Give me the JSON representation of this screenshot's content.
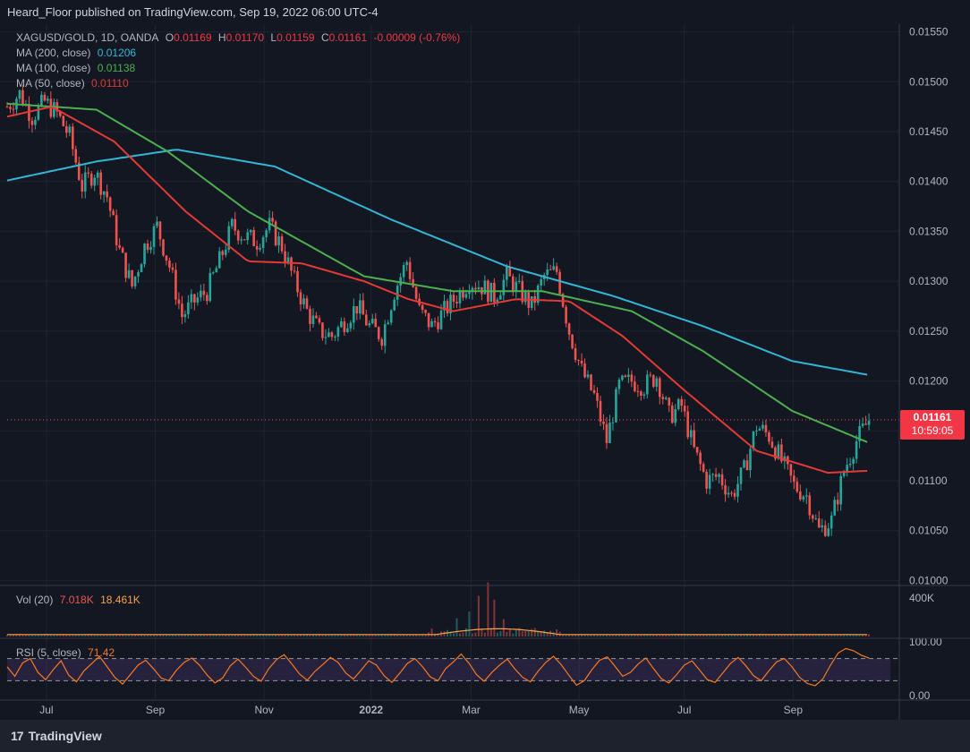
{
  "header": {
    "published_text": "Heard_Floor published on TradingView.com, Sep 19, 2022 06:00 UTC-4"
  },
  "legend": {
    "symbol": "XAGUSD/GOLD, 1D, OANDA",
    "open_label": "O",
    "open": "0.01169",
    "high_label": "H",
    "high": "0.01170",
    "low_label": "L",
    "low": "0.01159",
    "close_label": "C",
    "close": "0.01161",
    "change": "-0.00009 (-0.76%)",
    "ma200_label": "MA (200, close)",
    "ma200_value": "0.01206",
    "ma100_label": "MA (100, close)",
    "ma100_value": "0.01138",
    "ma50_label": "MA (50, close)",
    "ma50_value": "0.01110",
    "vol_label": "Vol (20)",
    "vol_value1": "7.018K",
    "vol_value2": "18.461K",
    "rsi_label": "RSI (5, close)",
    "rsi_value": "71.42"
  },
  "price_tag": {
    "price": "0.01161",
    "countdown": "10:59:05"
  },
  "footer": {
    "brand": "TradingView",
    "logo_glyph": "17"
  },
  "colors": {
    "background": "#131722",
    "up": "#26a69a",
    "down": "#ef5350",
    "ma200": "#33b6d6",
    "ma100": "#4caf50",
    "ma50": "#e53935",
    "rsi": "#f7781f",
    "volume_ma": "#f7a24a"
  },
  "chart_data": {
    "type": "candlestick",
    "symbol": "XAGUSD/GOLD",
    "timeframe": "1D",
    "y_axis": {
      "ticks": [
        "0.01550",
        "0.01500",
        "0.01450",
        "0.01400",
        "0.01350",
        "0.01300",
        "0.01250",
        "0.01200",
        "0.01150",
        "0.01100",
        "0.01050",
        "0.01000"
      ],
      "range": [
        0.00995,
        0.01555
      ]
    },
    "x_axis": {
      "ticks": [
        "Jul",
        "Sep",
        "Nov",
        "2022",
        "Mar",
        "May",
        "Jul",
        "Sep"
      ],
      "range_days": [
        0,
        480
      ]
    },
    "tick_days": [
      44,
      166,
      288,
      408,
      520,
      641,
      759,
      881
    ],
    "close_path": [
      [
        0,
        0.01475
      ],
      [
        14,
        0.01488
      ],
      [
        28,
        0.01465
      ],
      [
        42,
        0.0148
      ],
      [
        56,
        0.01468
      ],
      [
        70,
        0.01445
      ],
      [
        84,
        0.01395
      ],
      [
        98,
        0.0141
      ],
      [
        112,
        0.01385
      ],
      [
        126,
        0.0133
      ],
      [
        140,
        0.01295
      ],
      [
        154,
        0.01335
      ],
      [
        168,
        0.01355
      ],
      [
        182,
        0.01315
      ],
      [
        196,
        0.01265
      ],
      [
        210,
        0.0128
      ],
      [
        224,
        0.0129
      ],
      [
        238,
        0.0132
      ],
      [
        252,
        0.01355
      ],
      [
        266,
        0.01345
      ],
      [
        280,
        0.0134
      ],
      [
        294,
        0.01355
      ],
      [
        308,
        0.01335
      ],
      [
        322,
        0.013
      ],
      [
        336,
        0.0127
      ],
      [
        350,
        0.0125
      ],
      [
        364,
        0.01245
      ],
      [
        378,
        0.0126
      ],
      [
        392,
        0.01275
      ],
      [
        406,
        0.01255
      ],
      [
        420,
        0.01245
      ],
      [
        434,
        0.0129
      ],
      [
        448,
        0.0132
      ],
      [
        462,
        0.0127
      ],
      [
        476,
        0.01255
      ],
      [
        490,
        0.0127
      ],
      [
        504,
        0.01285
      ],
      [
        518,
        0.013
      ],
      [
        532,
        0.01295
      ],
      [
        546,
        0.01285
      ],
      [
        560,
        0.01305
      ],
      [
        574,
        0.0129
      ],
      [
        588,
        0.01275
      ],
      [
        602,
        0.01305
      ],
      [
        616,
        0.0131
      ],
      [
        630,
        0.0125
      ],
      [
        644,
        0.0121
      ],
      [
        658,
        0.01185
      ],
      [
        672,
        0.0114
      ],
      [
        686,
        0.01195
      ],
      [
        700,
        0.012
      ],
      [
        714,
        0.01195
      ],
      [
        728,
        0.01205
      ],
      [
        742,
        0.01165
      ],
      [
        756,
        0.01175
      ],
      [
        770,
        0.0113
      ],
      [
        784,
        0.011
      ],
      [
        798,
        0.01105
      ],
      [
        812,
        0.01085
      ],
      [
        826,
        0.0111
      ],
      [
        840,
        0.01155
      ],
      [
        854,
        0.01145
      ],
      [
        868,
        0.0112
      ],
      [
        882,
        0.01095
      ],
      [
        896,
        0.01085
      ],
      [
        910,
        0.0105
      ],
      [
        924,
        0.0106
      ],
      [
        938,
        0.0111
      ],
      [
        952,
        0.0114
      ],
      [
        966,
        0.01161
      ]
    ],
    "ma200": [
      [
        0,
        0.01401
      ],
      [
        100,
        0.0142
      ],
      [
        190,
        0.01432
      ],
      [
        300,
        0.01415
      ],
      [
        430,
        0.01362
      ],
      [
        560,
        0.01315
      ],
      [
        680,
        0.01285
      ],
      [
        780,
        0.01255
      ],
      [
        880,
        0.0122
      ],
      [
        966,
        0.01206
      ]
    ],
    "ma100": [
      [
        0,
        0.01478
      ],
      [
        100,
        0.01472
      ],
      [
        180,
        0.0143
      ],
      [
        270,
        0.0137
      ],
      [
        400,
        0.01305
      ],
      [
        500,
        0.0129
      ],
      [
        600,
        0.0129
      ],
      [
        700,
        0.0127
      ],
      [
        780,
        0.0123
      ],
      [
        880,
        0.0117
      ],
      [
        966,
        0.01138
      ]
    ],
    "ma50": [
      [
        0,
        0.01465
      ],
      [
        50,
        0.01475
      ],
      [
        120,
        0.0144
      ],
      [
        200,
        0.0137
      ],
      [
        270,
        0.0132
      ],
      [
        330,
        0.01318
      ],
      [
        400,
        0.013
      ],
      [
        450,
        0.01282
      ],
      [
        500,
        0.0127
      ],
      [
        570,
        0.01282
      ],
      [
        630,
        0.0128
      ],
      [
        690,
        0.01245
      ],
      [
        760,
        0.0119
      ],
      [
        840,
        0.0113
      ],
      [
        920,
        0.01108
      ],
      [
        966,
        0.0111
      ]
    ],
    "last_price": 0.01161,
    "volume": {
      "axis_ticks": [
        "400K"
      ],
      "range": [
        0,
        500000
      ],
      "spikes": [
        [
          505,
          190000
        ],
        [
          518,
          260000
        ],
        [
          530,
          420000
        ],
        [
          540,
          560000
        ],
        [
          547,
          380000
        ],
        [
          555,
          180000
        ]
      ]
    },
    "rsi": {
      "axis_ticks": [
        "100.00",
        "0.00"
      ],
      "range": [
        0,
        100
      ],
      "bands": [
        30,
        70
      ],
      "values": [
        55,
        38,
        62,
        70,
        45,
        32,
        50,
        66,
        40,
        28,
        48,
        61,
        74,
        55,
        36,
        24,
        41,
        58,
        67,
        52,
        35,
        30,
        49,
        63,
        71,
        58,
        40,
        26,
        35,
        57,
        69,
        54,
        38,
        29,
        52,
        68,
        77,
        60,
        42,
        31,
        47,
        59,
        72,
        63,
        44,
        33,
        49,
        66,
        58,
        39,
        27,
        43,
        61,
        70,
        55,
        37,
        30,
        52,
        64,
        78,
        62,
        41,
        29,
        45,
        58,
        69,
        51,
        36,
        28,
        47,
        63,
        74,
        59,
        40,
        22,
        30,
        50,
        67,
        73,
        56,
        38,
        45,
        60,
        71,
        52,
        34,
        26,
        41,
        58,
        66,
        49,
        32,
        27,
        44,
        61,
        72,
        57,
        39,
        30,
        48,
        64,
        70,
        55,
        36,
        25,
        21,
        33,
        58,
        80,
        88,
        84,
        76,
        71
      ]
    }
  }
}
